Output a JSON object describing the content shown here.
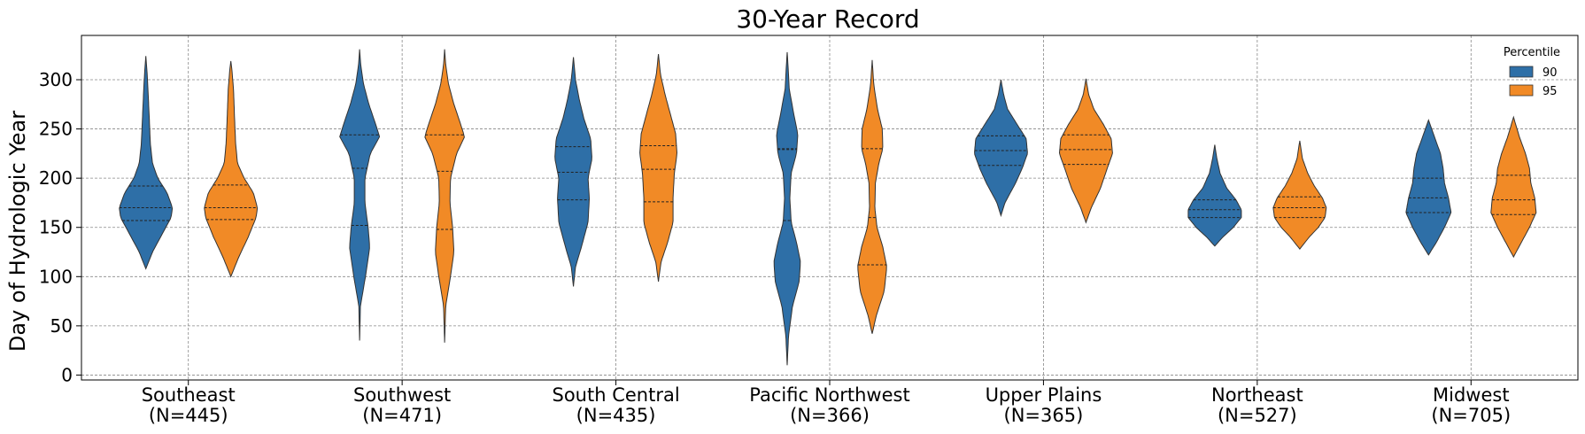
{
  "chart_data": {
    "type": "violin",
    "title": "30-Year Record",
    "ylabel": "Day of Hydrologic Year",
    "xlabel": "",
    "ylim": [
      -5,
      345
    ],
    "yticks": [
      0,
      50,
      100,
      150,
      200,
      250,
      300
    ],
    "grid": true,
    "legend": {
      "title": "Percentile",
      "placement": "top-right"
    },
    "categories": [
      {
        "line1": "Southeast",
        "line2": "(N=445)"
      },
      {
        "line1": "Southwest",
        "line2": "(N=471)"
      },
      {
        "line1": "South Central",
        "line2": "(N=435)"
      },
      {
        "line1": "Pacific Northwest",
        "line2": "(N=366)"
      },
      {
        "line1": "Upper Plains",
        "line2": "(N=365)"
      },
      {
        "line1": "Northeast",
        "line2": "(N=527)"
      },
      {
        "line1": "Midwest",
        "line2": "(N=705)"
      }
    ],
    "series": [
      {
        "name": "90",
        "color": "#2e6fa7",
        "violins": [
          {
            "min": 108,
            "max": 324,
            "q1": 157,
            "median": 170,
            "q3": 192,
            "profile": [
              [
                108,
                0
              ],
              [
                125,
                0.25
              ],
              [
                145,
                0.65
              ],
              [
                160,
                0.95
              ],
              [
                170,
                1.0
              ],
              [
                185,
                0.8
              ],
              [
                200,
                0.45
              ],
              [
                215,
                0.25
              ],
              [
                235,
                0.17
              ],
              [
                260,
                0.13
              ],
              [
                290,
                0.08
              ],
              [
                310,
                0.04
              ],
              [
                324,
                0
              ]
            ]
          },
          {
            "min": 35,
            "max": 331,
            "q1": 152,
            "median": 210,
            "q3": 244,
            "profile": [
              [
                35,
                0
              ],
              [
                70,
                0.03
              ],
              [
                100,
                0.22
              ],
              [
                130,
                0.38
              ],
              [
                150,
                0.32
              ],
              [
                175,
                0.2
              ],
              [
                200,
                0.2
              ],
              [
                225,
                0.4
              ],
              [
                242,
                0.75
              ],
              [
                255,
                0.6
              ],
              [
                275,
                0.35
              ],
              [
                295,
                0.15
              ],
              [
                315,
                0.04
              ],
              [
                331,
                0
              ]
            ]
          },
          {
            "min": 90,
            "max": 323,
            "q1": 178,
            "median": 206,
            "q3": 232,
            "profile": [
              [
                90,
                0
              ],
              [
                110,
                0.08
              ],
              [
                130,
                0.3
              ],
              [
                155,
                0.55
              ],
              [
                180,
                0.6
              ],
              [
                200,
                0.55
              ],
              [
                220,
                0.7
              ],
              [
                240,
                0.65
              ],
              [
                260,
                0.4
              ],
              [
                280,
                0.22
              ],
              [
                300,
                0.08
              ],
              [
                323,
                0
              ]
            ]
          },
          {
            "min": 10,
            "max": 328,
            "q1": 157,
            "median": 229,
            "q3": 230,
            "profile": [
              [
                10,
                0
              ],
              [
                40,
                0.05
              ],
              [
                70,
                0.2
              ],
              [
                95,
                0.45
              ],
              [
                115,
                0.5
              ],
              [
                135,
                0.35
              ],
              [
                155,
                0.15
              ],
              [
                180,
                0.1
              ],
              [
                205,
                0.15
              ],
              [
                225,
                0.35
              ],
              [
                245,
                0.4
              ],
              [
                265,
                0.25
              ],
              [
                290,
                0.08
              ],
              [
                310,
                0.04
              ],
              [
                328,
                0
              ]
            ]
          },
          {
            "min": 162,
            "max": 300,
            "q1": 213,
            "median": 228,
            "q3": 243,
            "profile": [
              [
                162,
                0
              ],
              [
                175,
                0.15
              ],
              [
                195,
                0.55
              ],
              [
                210,
                0.8
              ],
              [
                225,
                1.0
              ],
              [
                240,
                0.95
              ],
              [
                255,
                0.6
              ],
              [
                270,
                0.25
              ],
              [
                285,
                0.1
              ],
              [
                300,
                0
              ]
            ]
          },
          {
            "min": 131,
            "max": 234,
            "q1": 160,
            "median": 168,
            "q3": 178,
            "profile": [
              [
                131,
                0
              ],
              [
                140,
                0.3
              ],
              [
                150,
                0.7
              ],
              [
                160,
                1.0
              ],
              [
                168,
                1.0
              ],
              [
                178,
                0.8
              ],
              [
                190,
                0.45
              ],
              [
                205,
                0.2
              ],
              [
                220,
                0.08
              ],
              [
                234,
                0
              ]
            ]
          },
          {
            "min": 122,
            "max": 259,
            "q1": 165,
            "median": 180,
            "q3": 200,
            "profile": [
              [
                122,
                0
              ],
              [
                135,
                0.3
              ],
              [
                150,
                0.6
              ],
              [
                165,
                0.85
              ],
              [
                180,
                0.75
              ],
              [
                195,
                0.6
              ],
              [
                210,
                0.55
              ],
              [
                225,
                0.45
              ],
              [
                240,
                0.25
              ],
              [
                259,
                0
              ]
            ]
          }
        ]
      },
      {
        "name": "95",
        "color": "#f18a26",
        "violins": [
          {
            "min": 100,
            "max": 319,
            "q1": 158,
            "median": 170,
            "q3": 193,
            "profile": [
              [
                100,
                0
              ],
              [
                120,
                0.3
              ],
              [
                140,
                0.65
              ],
              [
                160,
                0.95
              ],
              [
                170,
                1.0
              ],
              [
                185,
                0.85
              ],
              [
                200,
                0.5
              ],
              [
                215,
                0.25
              ],
              [
                235,
                0.18
              ],
              [
                260,
                0.14
              ],
              [
                290,
                0.1
              ],
              [
                310,
                0.04
              ],
              [
                319,
                0
              ]
            ]
          },
          {
            "min": 33,
            "max": 331,
            "q1": 148,
            "median": 207,
            "q3": 244,
            "profile": [
              [
                33,
                0
              ],
              [
                70,
                0.04
              ],
              [
                100,
                0.22
              ],
              [
                125,
                0.35
              ],
              [
                150,
                0.3
              ],
              [
                175,
                0.2
              ],
              [
                200,
                0.22
              ],
              [
                225,
                0.45
              ],
              [
                242,
                0.75
              ],
              [
                255,
                0.6
              ],
              [
                275,
                0.35
              ],
              [
                295,
                0.15
              ],
              [
                315,
                0.04
              ],
              [
                331,
                0
              ]
            ]
          },
          {
            "min": 95,
            "max": 326,
            "q1": 176,
            "median": 209,
            "q3": 233,
            "profile": [
              [
                95,
                0
              ],
              [
                115,
                0.1
              ],
              [
                135,
                0.35
              ],
              [
                155,
                0.55
              ],
              [
                180,
                0.55
              ],
              [
                205,
                0.6
              ],
              [
                225,
                0.7
              ],
              [
                245,
                0.65
              ],
              [
                265,
                0.45
              ],
              [
                285,
                0.25
              ],
              [
                305,
                0.08
              ],
              [
                326,
                0
              ]
            ]
          },
          {
            "min": 42,
            "max": 320,
            "q1": 112,
            "median": 160,
            "q3": 230,
            "profile": [
              [
                42,
                0
              ],
              [
                60,
                0.15
              ],
              [
                85,
                0.45
              ],
              [
                110,
                0.55
              ],
              [
                130,
                0.4
              ],
              [
                150,
                0.18
              ],
              [
                170,
                0.1
              ],
              [
                195,
                0.12
              ],
              [
                215,
                0.25
              ],
              [
                230,
                0.4
              ],
              [
                250,
                0.38
              ],
              [
                270,
                0.2
              ],
              [
                295,
                0.06
              ],
              [
                320,
                0
              ]
            ]
          },
          {
            "min": 155,
            "max": 301,
            "q1": 214,
            "median": 229,
            "q3": 244,
            "profile": [
              [
                155,
                0
              ],
              [
                170,
                0.2
              ],
              [
                190,
                0.55
              ],
              [
                210,
                0.8
              ],
              [
                225,
                1.0
              ],
              [
                240,
                0.95
              ],
              [
                255,
                0.65
              ],
              [
                270,
                0.3
              ],
              [
                285,
                0.1
              ],
              [
                301,
                0
              ]
            ]
          },
          {
            "min": 128,
            "max": 238,
            "q1": 160,
            "median": 170,
            "q3": 181,
            "profile": [
              [
                128,
                0
              ],
              [
                140,
                0.35
              ],
              [
                150,
                0.7
              ],
              [
                160,
                0.95
              ],
              [
                170,
                1.0
              ],
              [
                180,
                0.85
              ],
              [
                192,
                0.55
              ],
              [
                205,
                0.3
              ],
              [
                220,
                0.1
              ],
              [
                238,
                0
              ]
            ]
          },
          {
            "min": 120,
            "max": 262,
            "q1": 163,
            "median": 178,
            "q3": 203,
            "profile": [
              [
                120,
                0
              ],
              [
                135,
                0.3
              ],
              [
                150,
                0.6
              ],
              [
                165,
                0.85
              ],
              [
                180,
                0.8
              ],
              [
                195,
                0.65
              ],
              [
                210,
                0.6
              ],
              [
                225,
                0.45
              ],
              [
                242,
                0.22
              ],
              [
                262,
                0
              ]
            ]
          }
        ]
      }
    ]
  }
}
